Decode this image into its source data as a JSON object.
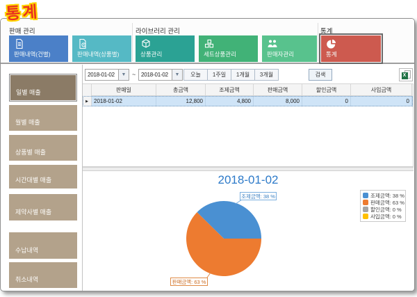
{
  "logo": {
    "text": "통계"
  },
  "window": {
    "toolbar": {
      "groups": [
        {
          "label": "판매 관리"
        },
        {
          "label": "라이브러리 관리"
        },
        {
          "label": "통계"
        }
      ],
      "buttons": [
        {
          "label": "판매내역(건별)",
          "color": "#4b80c8",
          "icon": "document-icon"
        },
        {
          "label": "판매내역(상품별)",
          "color": "#55b9c5",
          "icon": "document-tag-icon"
        },
        {
          "label": "상품관리",
          "color": "#2ba294",
          "icon": "cube-icon"
        },
        {
          "label": "세트상품관리",
          "color": "#41b277",
          "icon": "cubes-icon"
        },
        {
          "label": "판매자관리",
          "color": "#58c28d",
          "icon": "people-icon"
        },
        {
          "label": "통계",
          "color": "#cd5a4f",
          "icon": "pie-chart-icon",
          "selected": true
        }
      ]
    },
    "filter": {
      "date_from": "2018-01-02",
      "date_to": "2018-01-02",
      "separator": "~",
      "range_buttons": [
        "오늘",
        "1주일",
        "1개월",
        "3개월"
      ],
      "search_label": "검색"
    },
    "sidebar": {
      "item_color": "#b3a28b",
      "selected_color": "#8b7b66",
      "items": [
        {
          "label": "일별 매출",
          "selected": true
        },
        {
          "label": "월별 매출"
        },
        {
          "label": "상품별 매출"
        },
        {
          "label": "시간대별 매출"
        },
        {
          "label": "제약사별 매출"
        },
        {
          "label": "수납내역"
        },
        {
          "label": "취소내역"
        }
      ]
    },
    "table": {
      "columns": [
        "판매일",
        "총금액",
        "조제금액",
        "판매금액",
        "할인금액",
        "사입금액"
      ],
      "rows": [
        {
          "selected": true,
          "cells": [
            "2018-01-02",
            "12,800",
            "4,800",
            "8,000",
            "0",
            "0"
          ]
        }
      ]
    }
  },
  "chart_data": {
    "type": "pie",
    "title": "2018-01-02",
    "title_color": "#2d7ac9",
    "legend_position": "top-right",
    "slices": [
      {
        "label": "조제금액",
        "percent": 38,
        "color": "#4a90d2",
        "display": "조제금액: 38 %"
      },
      {
        "label": "판매금액",
        "percent": 63,
        "color": "#ed7b30",
        "display": "판매금액: 63 %"
      },
      {
        "label": "할인금액",
        "percent": 0,
        "color": "#a5a5a5",
        "display": "할인금액: 0 %"
      },
      {
        "label": "사입금액",
        "percent": 0,
        "color": "#ffc000",
        "display": "사입금액: 0 %"
      }
    ],
    "callouts": [
      {
        "slice": 0,
        "text": "조제금액: 38 %"
      },
      {
        "slice": 1,
        "text": "판매금액: 63 %"
      }
    ]
  }
}
